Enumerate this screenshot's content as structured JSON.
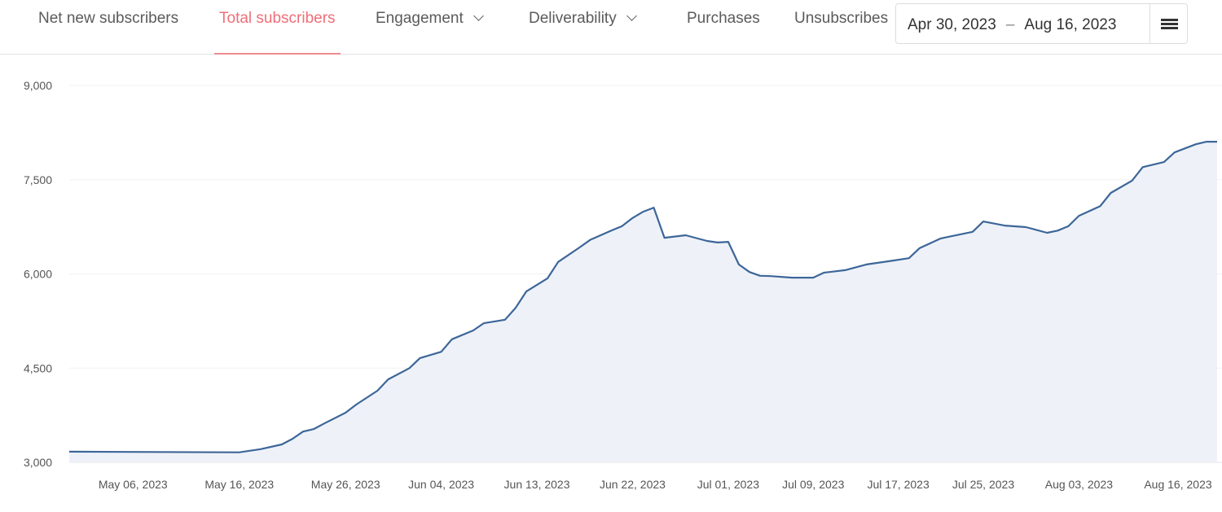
{
  "tabs": [
    {
      "label": "Net new subscribers",
      "active": false
    },
    {
      "label": "Total subscribers",
      "active": true
    },
    {
      "label": "Engagement",
      "active": false,
      "dropdown": true
    },
    {
      "label": "Deliverability",
      "active": false,
      "dropdown": true
    },
    {
      "label": "Purchases",
      "active": false
    },
    {
      "label": "Unsubscribes",
      "active": false
    }
  ],
  "date_range": {
    "start": "Apr 30, 2023",
    "separator": "–",
    "end": "Aug 16, 2023",
    "menu_icon": "hamburger-icon"
  },
  "colors": {
    "active_tab": "#ef6f78",
    "line": "#3d6699",
    "area": "#eef2f8"
  },
  "chart_data": {
    "type": "area",
    "xlim": [
      "2023-04-30",
      "2023-08-16"
    ],
    "ylim": [
      3000,
      9000
    ],
    "yticks": [
      3000,
      4500,
      6000,
      7500,
      9000
    ],
    "ytick_labels": [
      "3,000",
      "4,500",
      "6,000",
      "7,500",
      "9,000"
    ],
    "xticks": [
      "2023-05-06",
      "2023-05-16",
      "2023-05-26",
      "2023-06-04",
      "2023-06-13",
      "2023-06-22",
      "2023-07-01",
      "2023-07-09",
      "2023-07-17",
      "2023-07-25",
      "2023-08-03",
      "2023-08-16"
    ],
    "xtick_labels": [
      "May 06, 2023",
      "May 16, 2023",
      "May 26, 2023",
      "Jun 04, 2023",
      "Jun 13, 2023",
      "Jun 22, 2023",
      "Jul 01, 2023",
      "Jul 09, 2023",
      "Jul 17, 2023",
      "Jul 25, 2023",
      "Aug 03, 2023",
      "Aug 16, 2023"
    ],
    "grid": true,
    "points": [
      [
        "2023-04-30",
        3170
      ],
      [
        "2023-05-08",
        3165
      ],
      [
        "2023-05-16",
        3160
      ],
      [
        "2023-05-18",
        3210
      ],
      [
        "2023-05-20",
        3285
      ],
      [
        "2023-05-21",
        3375
      ],
      [
        "2023-05-22",
        3490
      ],
      [
        "2023-05-23",
        3530
      ],
      [
        "2023-05-24",
        3620
      ],
      [
        "2023-05-26",
        3790
      ],
      [
        "2023-05-27",
        3920
      ],
      [
        "2023-05-29",
        4140
      ],
      [
        "2023-05-30",
        4320
      ],
      [
        "2023-06-01",
        4500
      ],
      [
        "2023-06-02",
        4660
      ],
      [
        "2023-06-04",
        4760
      ],
      [
        "2023-06-05",
        4960
      ],
      [
        "2023-06-07",
        5100
      ],
      [
        "2023-06-08",
        5215
      ],
      [
        "2023-06-10",
        5270
      ],
      [
        "2023-06-11",
        5460
      ],
      [
        "2023-06-12",
        5720
      ],
      [
        "2023-06-14",
        5930
      ],
      [
        "2023-06-15",
        6190
      ],
      [
        "2023-06-17",
        6420
      ],
      [
        "2023-06-18",
        6540
      ],
      [
        "2023-06-20",
        6690
      ],
      [
        "2023-06-21",
        6760
      ],
      [
        "2023-06-22",
        6890
      ],
      [
        "2023-06-23",
        6990
      ],
      [
        "2023-06-24",
        7055
      ],
      [
        "2023-06-25",
        6575
      ],
      [
        "2023-06-27",
        6615
      ],
      [
        "2023-06-29",
        6525
      ],
      [
        "2023-06-30",
        6500
      ],
      [
        "2023-07-01",
        6510
      ],
      [
        "2023-07-02",
        6150
      ],
      [
        "2023-07-03",
        6030
      ],
      [
        "2023-07-04",
        5970
      ],
      [
        "2023-07-05",
        5965
      ],
      [
        "2023-07-07",
        5940
      ],
      [
        "2023-07-09",
        5940
      ],
      [
        "2023-07-10",
        6020
      ],
      [
        "2023-07-12",
        6060
      ],
      [
        "2023-07-14",
        6150
      ],
      [
        "2023-07-16",
        6200
      ],
      [
        "2023-07-18",
        6250
      ],
      [
        "2023-07-19",
        6410
      ],
      [
        "2023-07-21",
        6565
      ],
      [
        "2023-07-22",
        6600
      ],
      [
        "2023-07-24",
        6670
      ],
      [
        "2023-07-25",
        6835
      ],
      [
        "2023-07-27",
        6770
      ],
      [
        "2023-07-29",
        6745
      ],
      [
        "2023-07-31",
        6655
      ],
      [
        "2023-08-01",
        6690
      ],
      [
        "2023-08-02",
        6760
      ],
      [
        "2023-08-03",
        6925
      ],
      [
        "2023-08-05",
        7080
      ],
      [
        "2023-08-06",
        7290
      ],
      [
        "2023-08-08",
        7485
      ],
      [
        "2023-08-09",
        7700
      ],
      [
        "2023-08-11",
        7780
      ],
      [
        "2023-08-12",
        7935
      ],
      [
        "2023-08-14",
        8065
      ],
      [
        "2023-08-15",
        8105
      ],
      [
        "2023-08-16",
        8105
      ]
    ]
  }
}
